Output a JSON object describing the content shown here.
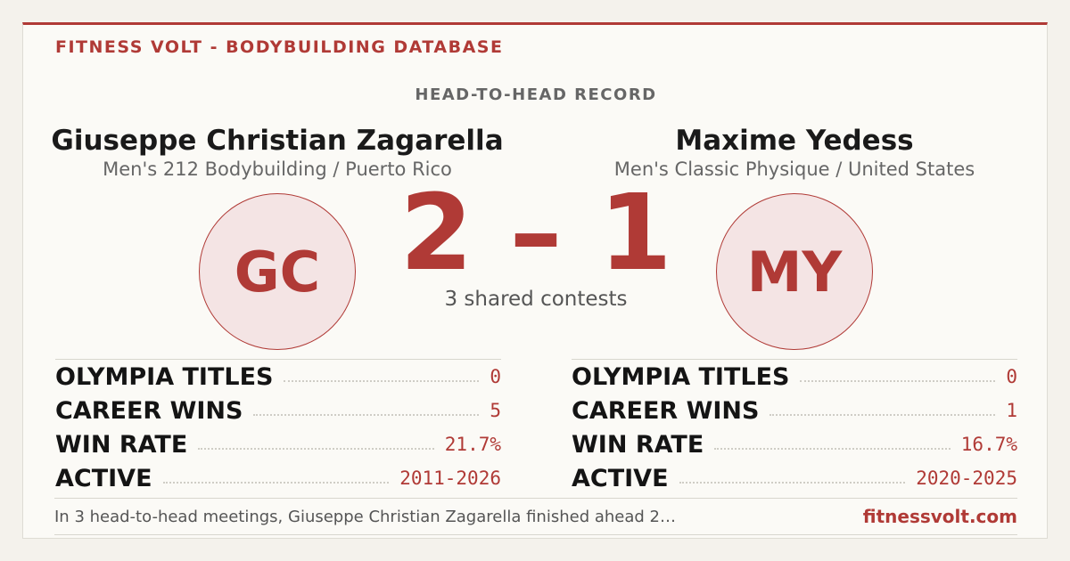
{
  "header": {
    "brand": "FITNESS VOLT - BODYBUILDING DATABASE",
    "section": "HEAD-TO-HEAD RECORD"
  },
  "athletes": [
    {
      "name": "Giuseppe Christian Zagarella",
      "subtitle": "Men's 212 Bodybuilding / Puerto Rico",
      "initials": "GC",
      "stats": [
        {
          "label": "OLYMPIA TITLES",
          "value": "0"
        },
        {
          "label": "CAREER WINS",
          "value": "5"
        },
        {
          "label": "WIN RATE",
          "value": "21.7%"
        },
        {
          "label": "ACTIVE",
          "value": "2011-2026"
        }
      ]
    },
    {
      "name": "Maxime Yedess",
      "subtitle": "Men's Classic Physique / United States",
      "initials": "MY",
      "stats": [
        {
          "label": "OLYMPIA TITLES",
          "value": "0"
        },
        {
          "label": "CAREER WINS",
          "value": "1"
        },
        {
          "label": "WIN RATE",
          "value": "16.7%"
        },
        {
          "label": "ACTIVE",
          "value": "2020-2025"
        }
      ]
    }
  ],
  "score": "2 – 1",
  "shared": "3 shared contests",
  "footer": {
    "summary": "In 3 head-to-head meetings, Giuseppe Christian Zagarella finished ahead 2…",
    "url": "fitnessvolt.com"
  }
}
